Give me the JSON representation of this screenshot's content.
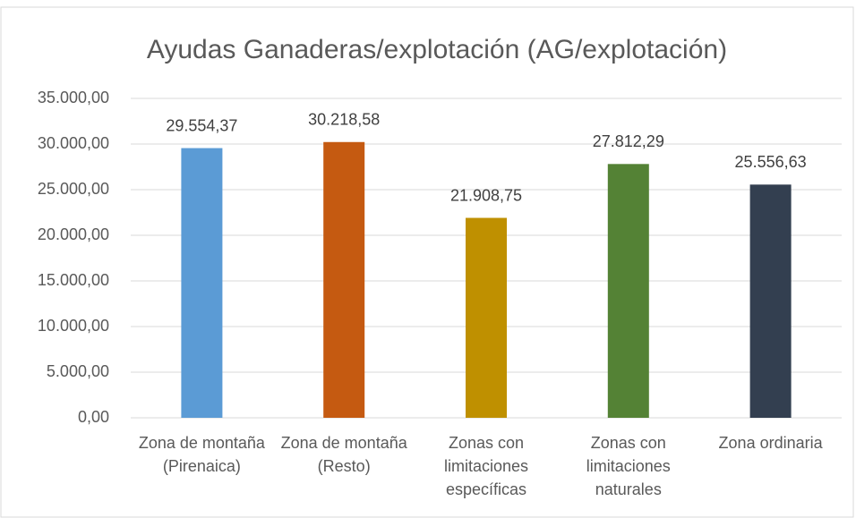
{
  "chart_data": {
    "type": "bar",
    "title": "Ayudas Ganaderas/explotación (AG/explotación)",
    "categories": [
      "Zona de montaña (Pirenaica)",
      "Zona de montaña (Resto)",
      "Zonas con limitaciones específicas",
      "Zonas con limitaciones naturales",
      "Zona ordinaria"
    ],
    "values": [
      29554.37,
      30218.58,
      21908.75,
      27812.29,
      25556.63
    ],
    "value_labels": [
      "29.554,37",
      "30.218,58",
      "21.908,75",
      "27.812,29",
      "25.556,63"
    ],
    "colors": [
      "#5b9bd5",
      "#c55a11",
      "#bf9000",
      "#548235",
      "#333f50"
    ],
    "ylim": [
      0,
      35000
    ],
    "yticks": [
      {
        "value": 0,
        "label": "0,00"
      },
      {
        "value": 5000,
        "label": "5.000,00"
      },
      {
        "value": 10000,
        "label": "10.000,00"
      },
      {
        "value": 15000,
        "label": "15.000,00"
      },
      {
        "value": 20000,
        "label": "20.000,00"
      },
      {
        "value": 25000,
        "label": "25.000,00"
      },
      {
        "value": 30000,
        "label": "30.000,00"
      },
      {
        "value": 35000,
        "label": "35.000,00"
      }
    ],
    "grid": true
  }
}
